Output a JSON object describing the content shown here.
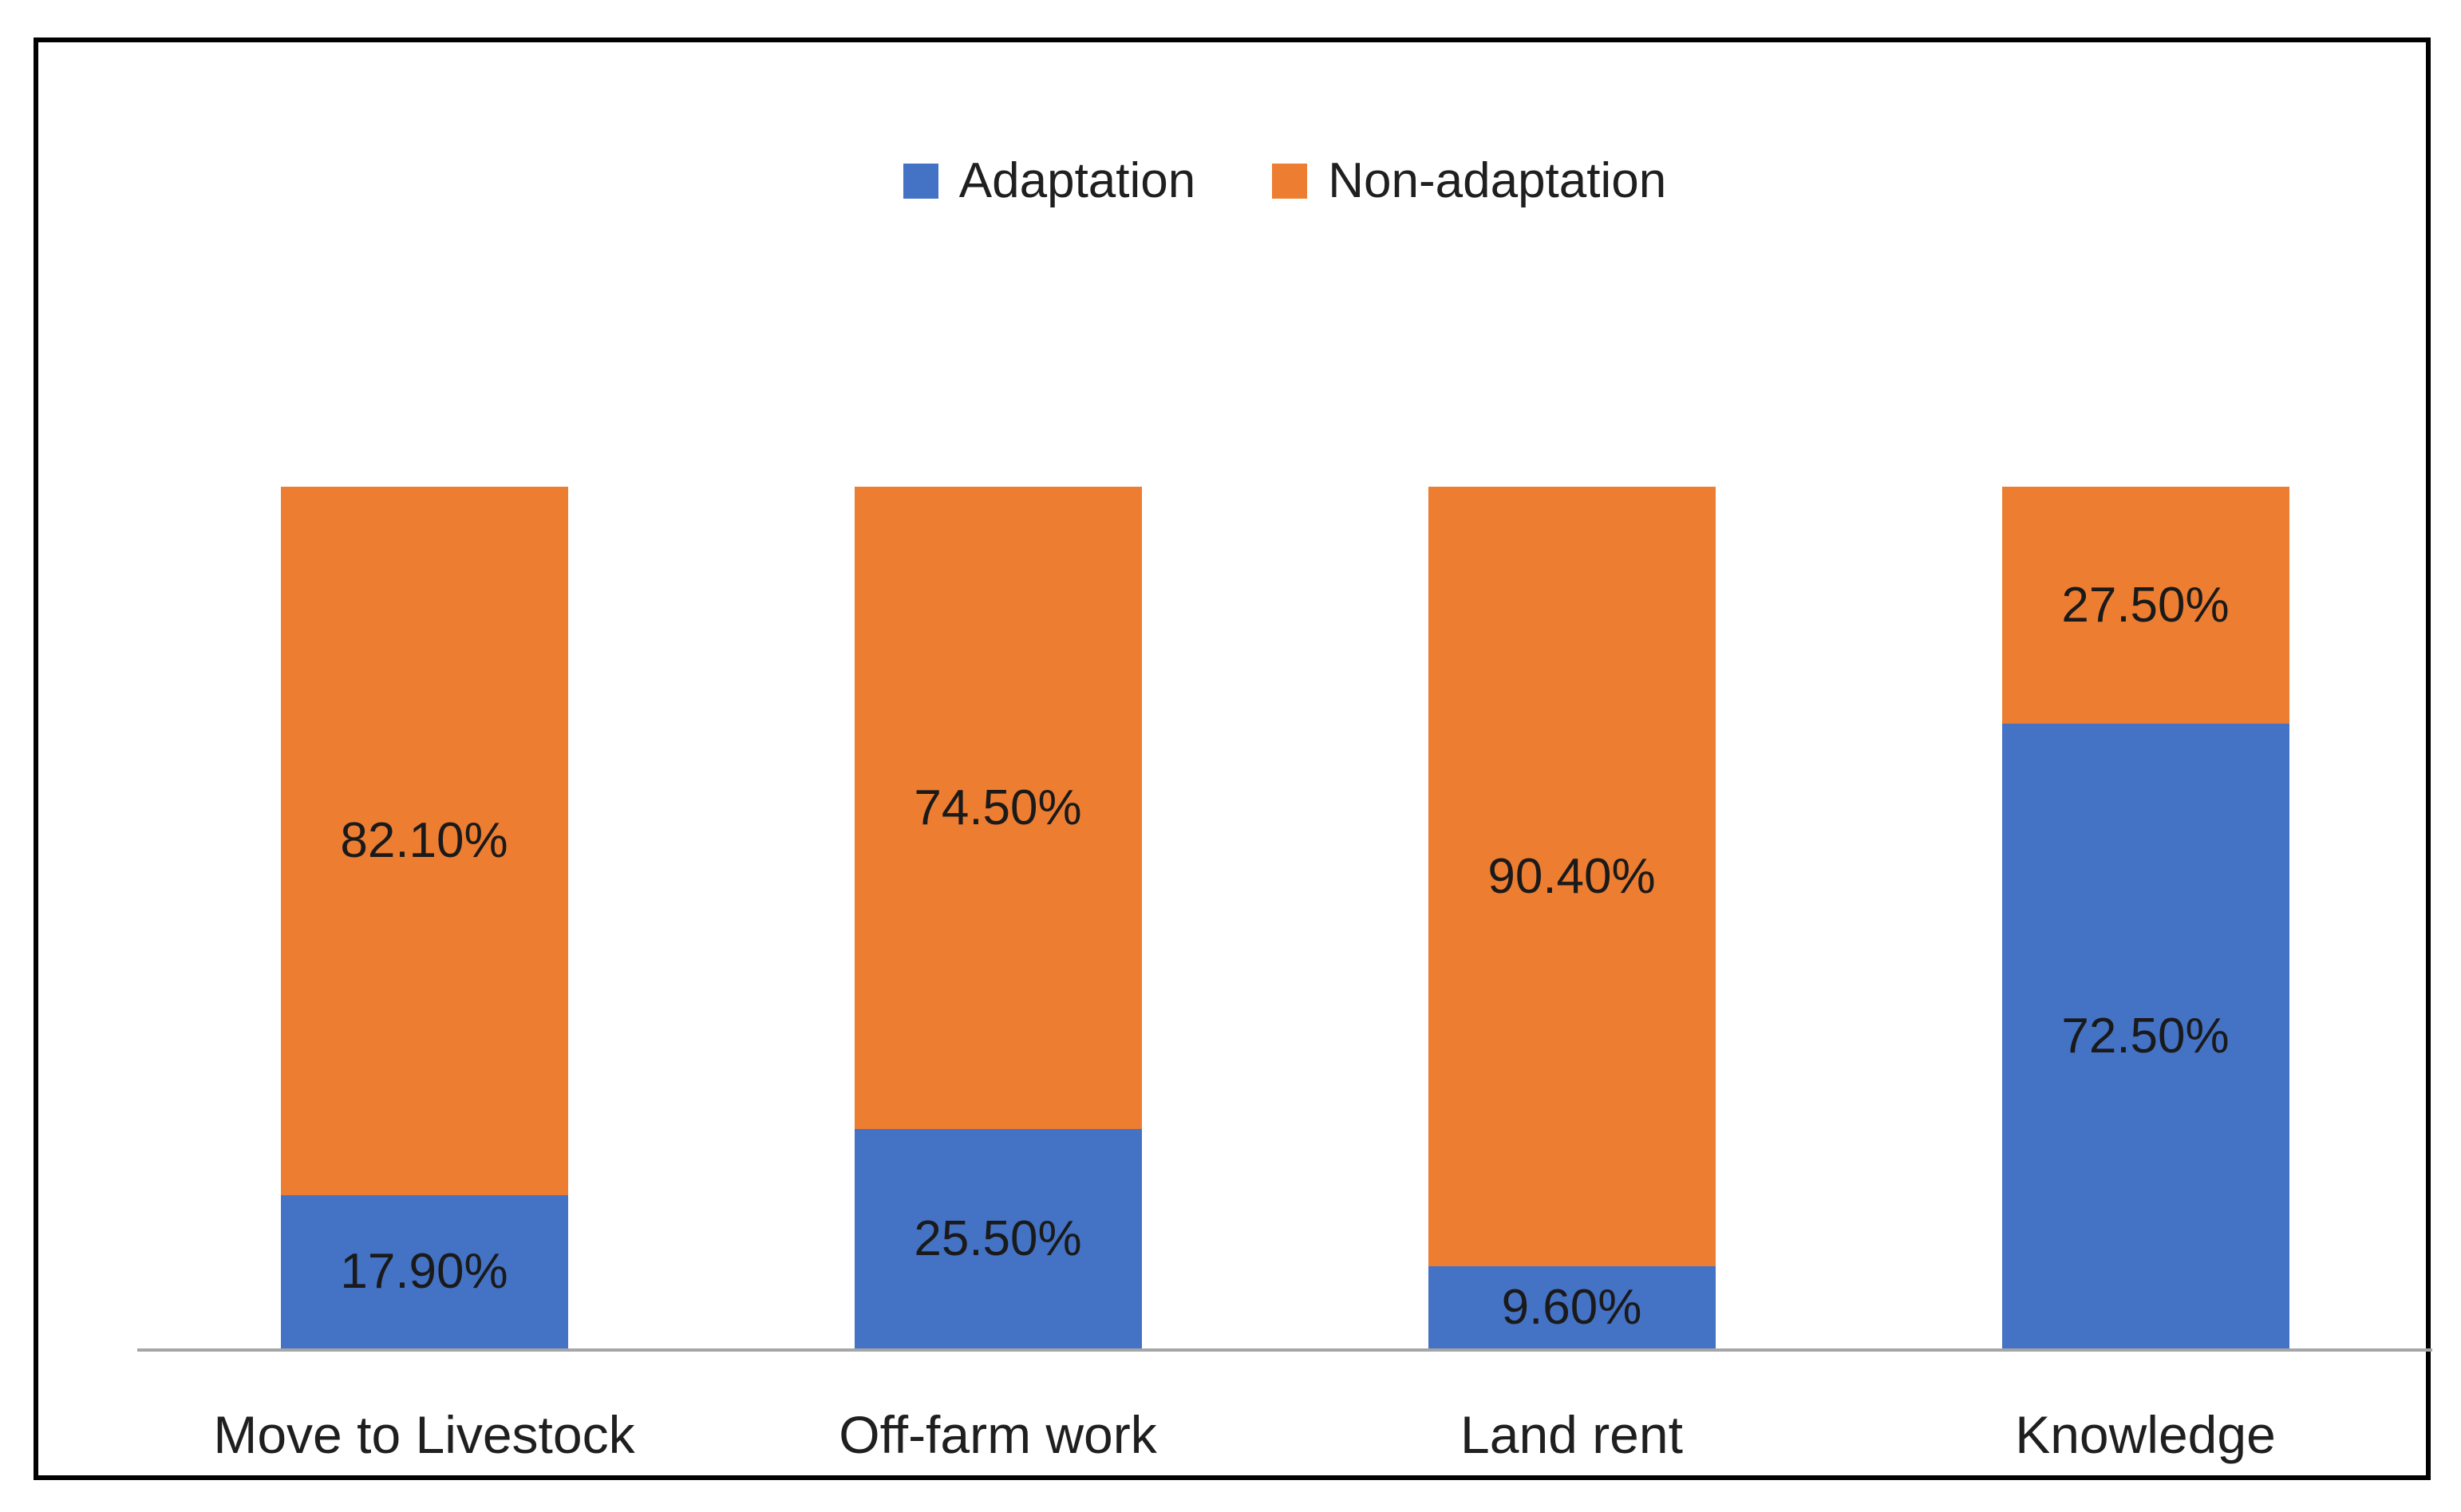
{
  "chart_data": {
    "type": "bar",
    "stacked": true,
    "units": "percent",
    "title": "",
    "xlabel": "",
    "ylabel": "",
    "ylim": [
      0,
      100
    ],
    "grid": false,
    "legend_position": "top",
    "axis_line_color": "#A6A6A6",
    "categories": [
      "Move to Livestock",
      "Off-farm work",
      "Land rent",
      "Knowledge"
    ],
    "series": [
      {
        "name": "Adaptation",
        "color": "#4472C4",
        "values": [
          17.9,
          25.5,
          9.6,
          72.5
        ],
        "labels": [
          "17.90%",
          "25.50%",
          "9.60%",
          "72.50%"
        ]
      },
      {
        "name": "Non-adaptation",
        "color": "#ED7D31",
        "values": [
          82.1,
          74.5,
          90.4,
          27.5
        ],
        "labels": [
          "82.10%",
          "74.50%",
          "90.40%",
          "27.50%"
        ]
      }
    ]
  }
}
